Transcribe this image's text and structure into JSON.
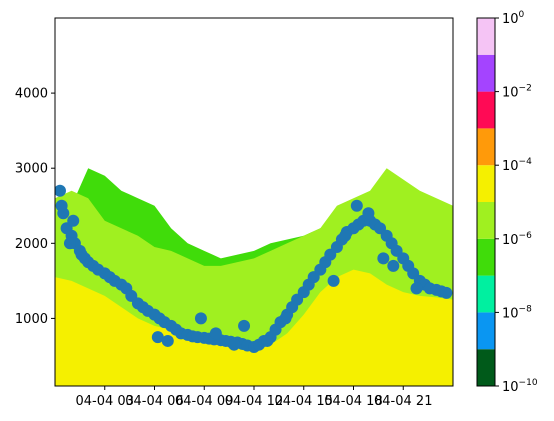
{
  "chart_data": {
    "type": "heatmap",
    "title": "",
    "xlabel": "",
    "ylabel": "",
    "x_tick_labels": [
      "04-04 03",
      "04-04 06",
      "04-04 09",
      "04-04 12",
      "04-04 15",
      "04-04 18",
      "04-04 21"
    ],
    "x_ticks_hours": [
      3,
      6,
      9,
      12,
      15,
      18,
      21
    ],
    "xlim_hours": [
      0,
      24
    ],
    "ylim": [
      100,
      5000
    ],
    "y_ticks": [
      1000,
      2000,
      3000,
      4000
    ],
    "y_tick_labels": [
      "1000",
      "2000",
      "3000",
      "4000"
    ],
    "colorbar": {
      "scale": "log",
      "range": [
        1e-10,
        1
      ],
      "tick_exponents": [
        -10,
        -8,
        -6,
        -4,
        -2,
        0
      ],
      "tick_labels": [
        "10",
        "10",
        "10",
        "10",
        "10",
        "10"
      ],
      "tick_superscripts": [
        "−10",
        "−8",
        "−6",
        "−4",
        "−2",
        "0"
      ],
      "bins": [
        {
          "from_exp": -10,
          "to_exp": -9,
          "color": "#005a1a"
        },
        {
          "from_exp": -9,
          "to_exp": -8,
          "color": "#0a96f2"
        },
        {
          "from_exp": -8,
          "to_exp": -7,
          "color": "#00f0a0"
        },
        {
          "from_exp": -7,
          "to_exp": -6,
          "color": "#40dc0a"
        },
        {
          "from_exp": -6,
          "to_exp": -5,
          "color": "#a0f020"
        },
        {
          "from_exp": -5,
          "to_exp": -4,
          "color": "#f5f000"
        },
        {
          "from_exp": -4,
          "to_exp": -3,
          "color": "#ff9a0a"
        },
        {
          "from_exp": -3,
          "to_exp": -2,
          "color": "#ff0a55"
        },
        {
          "from_exp": -2,
          "to_exp": -1,
          "color": "#a444ff"
        },
        {
          "from_exp": -1,
          "to_exp": 0,
          "color": "#f5c4f5"
        }
      ]
    },
    "field_layers": [
      {
        "name": "low-layer",
        "color": "#f5f000",
        "top_profile": [
          [
            0,
            1550
          ],
          [
            1,
            1500
          ],
          [
            2,
            1400
          ],
          [
            3,
            1300
          ],
          [
            4,
            1150
          ],
          [
            5,
            1000
          ],
          [
            6,
            900
          ],
          [
            7,
            850
          ],
          [
            8,
            800
          ],
          [
            9,
            750
          ],
          [
            10,
            700
          ],
          [
            11,
            650
          ],
          [
            12,
            620
          ],
          [
            13,
            650
          ],
          [
            14,
            800
          ],
          [
            15,
            1050
          ],
          [
            16,
            1350
          ],
          [
            17,
            1550
          ],
          [
            18,
            1650
          ],
          [
            19,
            1600
          ],
          [
            20,
            1450
          ],
          [
            21,
            1350
          ],
          [
            22,
            1300
          ],
          [
            23,
            1280
          ],
          [
            24,
            1250
          ]
        ]
      },
      {
        "name": "light-green-layer",
        "color": "#a0f020",
        "top_profile": [
          [
            0,
            2600
          ],
          [
            1,
            2700
          ],
          [
            2,
            2600
          ],
          [
            3,
            2300
          ],
          [
            4,
            2200
          ],
          [
            5,
            2100
          ],
          [
            6,
            1950
          ],
          [
            7,
            1900
          ],
          [
            8,
            1800
          ],
          [
            9,
            1700
          ],
          [
            10,
            1700
          ],
          [
            11,
            1750
          ],
          [
            12,
            1800
          ],
          [
            13,
            1900
          ],
          [
            14,
            2000
          ],
          [
            15,
            2100
          ],
          [
            16,
            2200
          ],
          [
            17,
            2500
          ],
          [
            18,
            2600
          ],
          [
            19,
            2700
          ],
          [
            20,
            3000
          ],
          [
            21,
            2850
          ],
          [
            22,
            2700
          ],
          [
            23,
            2600
          ],
          [
            24,
            2500
          ]
        ]
      },
      {
        "name": "green-layer",
        "color": "#40dc0a",
        "top_profile": [
          [
            0,
            1500
          ],
          [
            1,
            2500
          ],
          [
            2,
            3000
          ],
          [
            3,
            2900
          ],
          [
            4,
            2700
          ],
          [
            5,
            2600
          ],
          [
            6,
            2500
          ],
          [
            7,
            2200
          ],
          [
            8,
            2000
          ],
          [
            9,
            1900
          ],
          [
            10,
            1800
          ],
          [
            11,
            1850
          ],
          [
            12,
            1900
          ],
          [
            13,
            2000
          ],
          [
            14,
            2050
          ],
          [
            15,
            2100
          ],
          [
            16,
            2200
          ],
          [
            17,
            2300
          ],
          [
            18,
            2400
          ],
          [
            19,
            2500
          ],
          [
            20,
            2600
          ],
          [
            21,
            2600
          ],
          [
            22,
            2500
          ],
          [
            23,
            2300
          ],
          [
            24,
            2100
          ]
        ]
      }
    ],
    "scatter_series": {
      "marker": "circle",
      "color": "#1f77b4",
      "x_hours": [
        0.3,
        0.5,
        0.7,
        1.0,
        1.2,
        1.5,
        1.8,
        2.0,
        2.3,
        2.6,
        3.0,
        3.3,
        3.6,
        4.0,
        4.3,
        4.6,
        5.0,
        5.3,
        5.6,
        6.0,
        6.3,
        6.6,
        7.0,
        7.3,
        7.6,
        8.0,
        8.3,
        8.6,
        9.0,
        9.3,
        9.6,
        10.0,
        10.3,
        10.6,
        11.0,
        11.3,
        11.6,
        12.0,
        12.3,
        12.6,
        13.0,
        13.3,
        13.6,
        14.0,
        14.3,
        14.6,
        15.0,
        15.3,
        15.6,
        16.0,
        16.3,
        16.6,
        17.0,
        17.3,
        17.6,
        18.0,
        18.3,
        18.6,
        19.0,
        19.3,
        19.6,
        20.0,
        20.3,
        20.6,
        21.0,
        21.3,
        21.6,
        22.0,
        22.3,
        22.6,
        23.0,
        23.3,
        23.6,
        0.4,
        0.9,
        1.1,
        1.6,
        6.2,
        6.8,
        8.8,
        9.7,
        10.8,
        11.4,
        12.8,
        13.9,
        16.8,
        17.5,
        18.2,
        18.9,
        19.8,
        20.4,
        21.8
      ],
      "y_values": [
        2700,
        2400,
        2200,
        2100,
        2000,
        1900,
        1800,
        1750,
        1700,
        1650,
        1600,
        1550,
        1500,
        1450,
        1400,
        1300,
        1200,
        1150,
        1100,
        1050,
        1000,
        950,
        900,
        850,
        800,
        780,
        760,
        750,
        740,
        730,
        720,
        710,
        700,
        690,
        680,
        660,
        640,
        620,
        650,
        700,
        750,
        850,
        950,
        1050,
        1150,
        1250,
        1350,
        1450,
        1550,
        1650,
        1750,
        1850,
        1950,
        2050,
        2150,
        2200,
        2250,
        2300,
        2300,
        2250,
        2200,
        2100,
        2000,
        1900,
        1800,
        1700,
        1600,
        1500,
        1450,
        1400,
        1380,
        1360,
        1340,
        2500,
        2000,
        2300,
        1850,
        750,
        700,
        1000,
        800,
        650,
        900,
        700,
        1000,
        1500,
        2100,
        2500,
        2400,
        1800,
        1700,
        1400
      ]
    }
  }
}
